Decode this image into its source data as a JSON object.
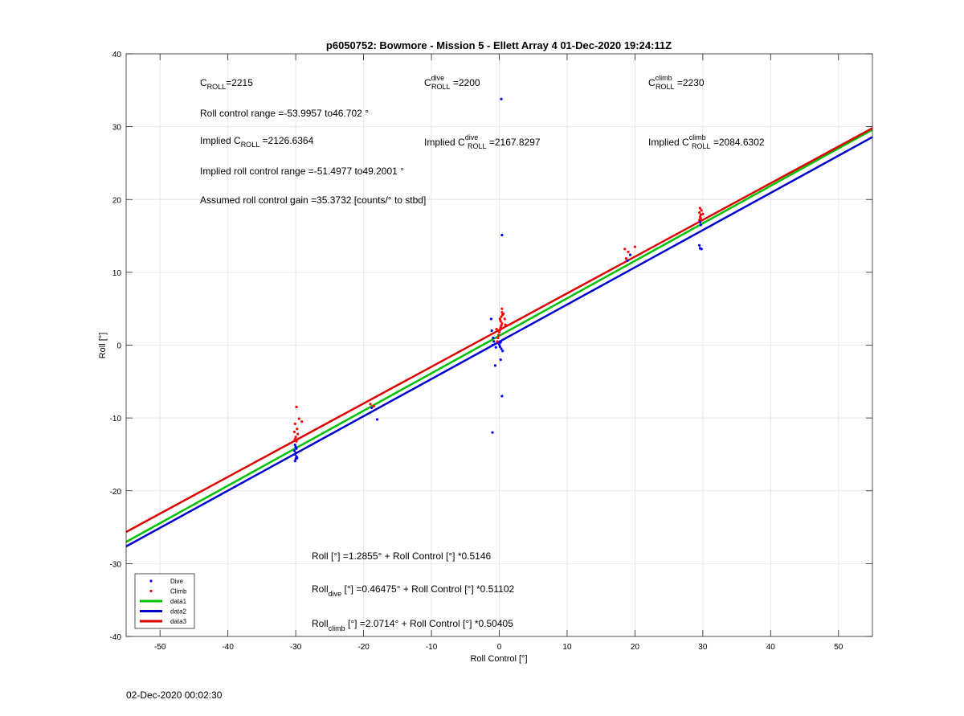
{
  "chart_data": {
    "type": "scatter",
    "title": "p6050752: Bowmore - Mission 5 - Ellett Array 4 01-Dec-2020 19:24:11Z",
    "xlabel": "Roll Control [°]",
    "ylabel": "Roll [°]",
    "xlim": [
      -55,
      55
    ],
    "ylim": [
      -40,
      40
    ],
    "x_ticks": [
      -50,
      -40,
      -30,
      -20,
      -10,
      0,
      10,
      20,
      30,
      40,
      50
    ],
    "y_ticks": [
      -40,
      -30,
      -20,
      -10,
      0,
      10,
      20,
      30,
      40
    ],
    "grid": true,
    "legend_position": "bottom-left",
    "series": [
      {
        "name": "Dive",
        "kind": "points",
        "color": "#0000ff",
        "points": [
          [
            -30.1,
            -15.9
          ],
          [
            -30.0,
            -15.6
          ],
          [
            -29.9,
            -15.3
          ],
          [
            -30.1,
            -15.0
          ],
          [
            -30.0,
            -14.8
          ],
          [
            -30.2,
            -14.5
          ],
          [
            -29.9,
            -14.2
          ],
          [
            -30.0,
            -14.0
          ],
          [
            -30.1,
            -13.7
          ],
          [
            -29.8,
            -15.5
          ],
          [
            -18.0,
            -10.2
          ],
          [
            -18.8,
            -8.6
          ],
          [
            -1.0,
            -12.0
          ],
          [
            0.4,
            -7.0
          ],
          [
            -0.6,
            -2.8
          ],
          [
            0.2,
            -2.0
          ],
          [
            -1.0,
            0.0
          ],
          [
            -0.8,
            0.5
          ],
          [
            -0.9,
            1.0
          ],
          [
            -1.1,
            2.0
          ],
          [
            -1.2,
            3.6
          ],
          [
            -0.5,
            -0.3
          ],
          [
            0.0,
            0.1
          ],
          [
            0.2,
            0.4
          ],
          [
            0.3,
            -0.5
          ],
          [
            -0.3,
            0.3
          ],
          [
            0.1,
            -0.2
          ],
          [
            0.5,
            -0.8
          ],
          [
            0.4,
            15.1
          ],
          [
            0.3,
            33.8
          ],
          [
            19.3,
            12.4
          ],
          [
            18.9,
            11.6
          ],
          [
            29.6,
            13.3
          ],
          [
            29.8,
            13.2
          ],
          [
            29.5,
            13.7
          ],
          [
            29.7,
            16.5
          ],
          [
            29.6,
            16.9
          ]
        ]
      },
      {
        "name": "Climb",
        "kind": "points",
        "color": "#ff0000",
        "points": [
          [
            -29.9,
            -8.5
          ],
          [
            -29.5,
            -10.1
          ],
          [
            -29.1,
            -10.5
          ],
          [
            -30.1,
            -10.8
          ],
          [
            -29.8,
            -11.5
          ],
          [
            -30.2,
            -11.9
          ],
          [
            -29.7,
            -12.2
          ],
          [
            -30.0,
            -12.6
          ],
          [
            -30.1,
            -12.9
          ],
          [
            -29.9,
            -13.2
          ],
          [
            -19.0,
            -8.1
          ],
          [
            -18.5,
            -8.4
          ],
          [
            -0.3,
            0.5
          ],
          [
            -0.2,
            1.0
          ],
          [
            -0.1,
            1.4
          ],
          [
            0.0,
            1.8
          ],
          [
            0.1,
            2.1
          ],
          [
            0.2,
            2.4
          ],
          [
            0.3,
            2.7
          ],
          [
            0.4,
            3.0
          ],
          [
            0.2,
            3.3
          ],
          [
            0.1,
            3.6
          ],
          [
            0.3,
            3.9
          ],
          [
            0.5,
            4.2
          ],
          [
            0.4,
            4.5
          ],
          [
            0.6,
            4.3
          ],
          [
            0.4,
            5.0
          ],
          [
            0.8,
            3.6
          ],
          [
            0.9,
            2.8
          ],
          [
            -0.4,
            2.2
          ],
          [
            18.5,
            13.2
          ],
          [
            19.0,
            12.8
          ],
          [
            20.0,
            13.5
          ],
          [
            18.7,
            11.9
          ],
          [
            29.5,
            17.2
          ],
          [
            29.6,
            17.6
          ],
          [
            29.7,
            17.9
          ],
          [
            29.5,
            18.2
          ],
          [
            29.8,
            18.5
          ],
          [
            29.6,
            18.8
          ],
          [
            29.7,
            17.4
          ],
          [
            30.0,
            18.0
          ]
        ]
      },
      {
        "name": "data1",
        "kind": "line",
        "color": "#00c000",
        "intercept": 1.2855,
        "slope": 0.5146
      },
      {
        "name": "data2",
        "kind": "line",
        "color": "#0000cc",
        "intercept": 0.46475,
        "slope": 0.51102
      },
      {
        "name": "data3",
        "kind": "line",
        "color": "#dd0000",
        "intercept": 2.0714,
        "slope": 0.50405
      }
    ]
  },
  "annotations": {
    "c_roll": {
      "base": "C",
      "sub": "ROLL",
      "value": "=2215"
    },
    "c_roll_dive": {
      "base": "C",
      "sup": "dive",
      "sub": "ROLL",
      "value": " =2200"
    },
    "c_roll_climb": {
      "base": "C",
      "sup": "climb",
      "sub": "ROLL",
      "value": " =2230"
    },
    "roll_control_range": "Roll control range =-53.9957 to46.702 °",
    "implied_c_roll": {
      "prefix": "Implied C",
      "sub": "ROLL",
      "value": " =2126.6364"
    },
    "implied_c_roll_dive": {
      "prefix": "Implied C",
      "sup": "dive",
      "sub": "ROLL",
      "value": " =2167.8297"
    },
    "implied_c_roll_climb": {
      "prefix": "Implied C",
      "sup": "climb",
      "sub": "ROLL",
      "value": " =2084.6302"
    },
    "implied_roll_control_range": "Implied roll control range =-51.4977 to49.2001 °",
    "assumed_gain": "Assumed roll control gain =35.3732 [counts/° to stbd]",
    "fit_all": "Roll [°] =1.2855° + Roll Control [°] *0.5146",
    "fit_dive": {
      "prefix": "Roll",
      "sub": "dive",
      "value": " [°] =0.46475° + Roll Control [°] *0.51102"
    },
    "fit_climb": {
      "prefix": "Roll",
      "sub": "climb",
      "value": " [°] =2.0714° + Roll Control [°] *0.50405"
    }
  },
  "footer_timestamp": "02-Dec-2020 00:02:30"
}
